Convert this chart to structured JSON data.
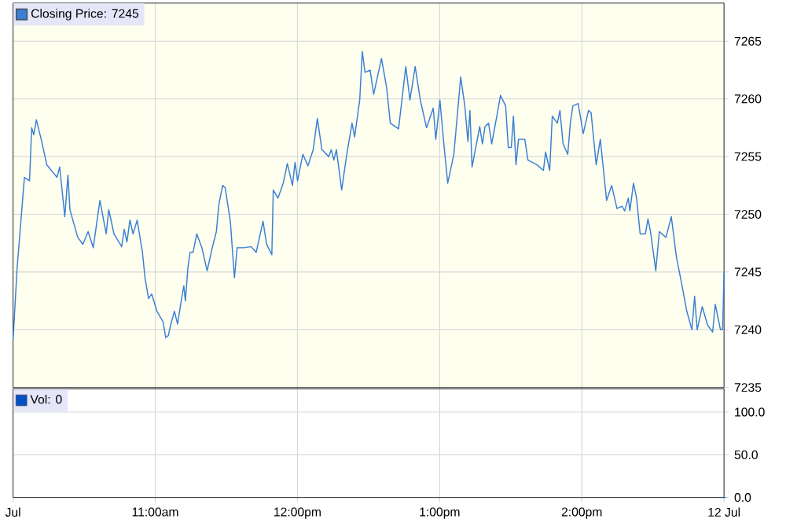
{
  "chart_data": [
    {
      "type": "line",
      "xlim": [
        10,
        15
      ],
      "ylim": [
        7235,
        7268.3
      ],
      "yticks": [
        7235,
        7240,
        7245,
        7250,
        7255,
        7260,
        7265
      ],
      "xticks": [
        {
          "value": 10,
          "label": null
        },
        {
          "value": 11,
          "label": null
        },
        {
          "value": 12,
          "label": null
        },
        {
          "value": 13,
          "label": null
        },
        {
          "value": 14,
          "label": null
        },
        {
          "value": 15,
          "label": null
        }
      ],
      "tick_labels": "y",
      "grid": true,
      "legend": "top left",
      "x": [
        10.0,
        10.029,
        10.08,
        10.116,
        10.131,
        10.146,
        10.164,
        10.2,
        10.237,
        10.309,
        10.328,
        10.364,
        10.386,
        10.4,
        10.455,
        10.491,
        10.528,
        10.564,
        10.611,
        10.655,
        10.673,
        10.71,
        10.764,
        10.782,
        10.801,
        10.822,
        10.844,
        10.873,
        10.91,
        10.928,
        10.953,
        10.975,
        11.012,
        11.055,
        11.074,
        11.092,
        11.11,
        11.135,
        11.157,
        11.183,
        11.201,
        11.212,
        11.23,
        11.245,
        11.266,
        11.292,
        11.328,
        11.365,
        11.401,
        11.43,
        11.448,
        11.474,
        11.492,
        11.528,
        11.557,
        11.576,
        11.619,
        11.674,
        11.71,
        11.758,
        11.783,
        11.82,
        11.83,
        11.863,
        11.9,
        11.929,
        11.965,
        11.983,
        12.001,
        12.038,
        12.074,
        12.111,
        12.14,
        12.172,
        12.22,
        12.238,
        12.256,
        12.274,
        12.311,
        12.347,
        12.384,
        12.402,
        12.438,
        12.456,
        12.475,
        12.511,
        12.536,
        12.566,
        12.591,
        12.627,
        12.653,
        12.711,
        12.762,
        12.791,
        12.828,
        12.864,
        12.908,
        12.955,
        12.973,
        13.002,
        13.028,
        13.057,
        13.1,
        13.148,
        13.177,
        13.199,
        13.213,
        13.228,
        13.282,
        13.301,
        13.319,
        13.344,
        13.366,
        13.402,
        13.428,
        13.464,
        13.483,
        13.504,
        13.519,
        13.537,
        13.555,
        13.599,
        13.621,
        13.683,
        13.73,
        13.745,
        13.774,
        13.792,
        13.828,
        13.846,
        13.868,
        13.901,
        13.919,
        13.937,
        13.974,
        14.01,
        14.047,
        14.065,
        14.101,
        14.13,
        14.174,
        14.21,
        14.247,
        14.283,
        14.301,
        14.327,
        14.338,
        14.363,
        14.385,
        14.41,
        14.447,
        14.465,
        14.483,
        14.52,
        14.545,
        14.592,
        14.629,
        14.665,
        14.702,
        14.738,
        14.774,
        14.793,
        14.811,
        14.847,
        14.884,
        14.92,
        14.938,
        14.975,
        14.99,
        15.0
      ],
      "series": [
        {
          "name": "Closing Price: 7245",
          "color": "#3a7fd5",
          "values": [
            7239.1,
            7245.4,
            7253.2,
            7252.9,
            7257.5,
            7256.9,
            7258.2,
            7256.4,
            7254.3,
            7253.2,
            7254.1,
            7249.8,
            7253.4,
            7250.4,
            7248.0,
            7247.4,
            7248.5,
            7247.1,
            7251.2,
            7248.3,
            7250.4,
            7248.3,
            7247.2,
            7248.7,
            7247.6,
            7249.5,
            7248.3,
            7249.5,
            7246.7,
            7244.5,
            7242.7,
            7243.1,
            7241.6,
            7240.7,
            7239.3,
            7239.5,
            7240.5,
            7241.6,
            7240.5,
            7242.5,
            7243.8,
            7242.5,
            7245.4,
            7246.7,
            7246.7,
            7248.3,
            7247.1,
            7245.1,
            7247.1,
            7248.5,
            7250.9,
            7252.5,
            7252.3,
            7249.4,
            7244.5,
            7247.1,
            7247.1,
            7247.2,
            7246.7,
            7249.4,
            7247.4,
            7246.5,
            7252.1,
            7251.4,
            7252.7,
            7254.4,
            7252.5,
            7254.5,
            7252.9,
            7255.2,
            7254.2,
            7255.6,
            7258.3,
            7255.6,
            7255.0,
            7255.6,
            7254.7,
            7255.6,
            7252.1,
            7255.2,
            7257.9,
            7256.7,
            7259.9,
            7264.1,
            7262.3,
            7262.5,
            7260.4,
            7262.1,
            7263.5,
            7261.0,
            7257.9,
            7257.4,
            7262.8,
            7259.9,
            7262.8,
            7259.9,
            7257.5,
            7259.2,
            7256.5,
            7259.9,
            7256.3,
            7252.7,
            7255.2,
            7261.9,
            7259.4,
            7256.3,
            7259.0,
            7254.1,
            7257.6,
            7256.1,
            7257.6,
            7257.9,
            7256.1,
            7258.5,
            7260.3,
            7259.4,
            7255.8,
            7255.8,
            7258.5,
            7254.3,
            7256.5,
            7256.5,
            7254.7,
            7254.3,
            7253.8,
            7255.4,
            7253.8,
            7258.5,
            7257.9,
            7259.0,
            7256.1,
            7255.2,
            7257.9,
            7259.4,
            7259.6,
            7257.0,
            7259.0,
            7258.8,
            7254.3,
            7256.5,
            7251.2,
            7252.5,
            7250.5,
            7250.7,
            7250.3,
            7251.4,
            7250.3,
            7252.7,
            7251.4,
            7248.3,
            7248.3,
            7249.6,
            7248.5,
            7245.1,
            7248.5,
            7248.0,
            7249.8,
            7246.3,
            7244.0,
            7241.6,
            7240.0,
            7242.9,
            7240.0,
            7242.0,
            7240.4,
            7239.8,
            7242.2,
            7240.0,
            7240.0,
            7245.0
          ]
        }
      ]
    },
    {
      "type": "bar",
      "xlim": [
        10,
        15
      ],
      "ylim": [
        0,
        127
      ],
      "yticks": [
        {
          "value": 0,
          "label": "0.0"
        },
        {
          "value": 50,
          "label": "50.0"
        },
        {
          "value": 100,
          "label": "100.0"
        }
      ],
      "xticks": [
        {
          "value": 10,
          "label": "Jul"
        },
        {
          "value": 11,
          "label": "11:00am"
        },
        {
          "value": 12,
          "label": "12:00pm"
        },
        {
          "value": 13,
          "label": "1:00pm"
        },
        {
          "value": 14,
          "label": "2:00pm"
        },
        {
          "value": 15,
          "label": "12 Jul"
        }
      ],
      "grid": true,
      "legend": "top left",
      "x": [
        15
      ],
      "series": [
        {
          "name": "Vol: 0",
          "color": "#0050c8",
          "values": [
            0
          ]
        }
      ]
    }
  ]
}
